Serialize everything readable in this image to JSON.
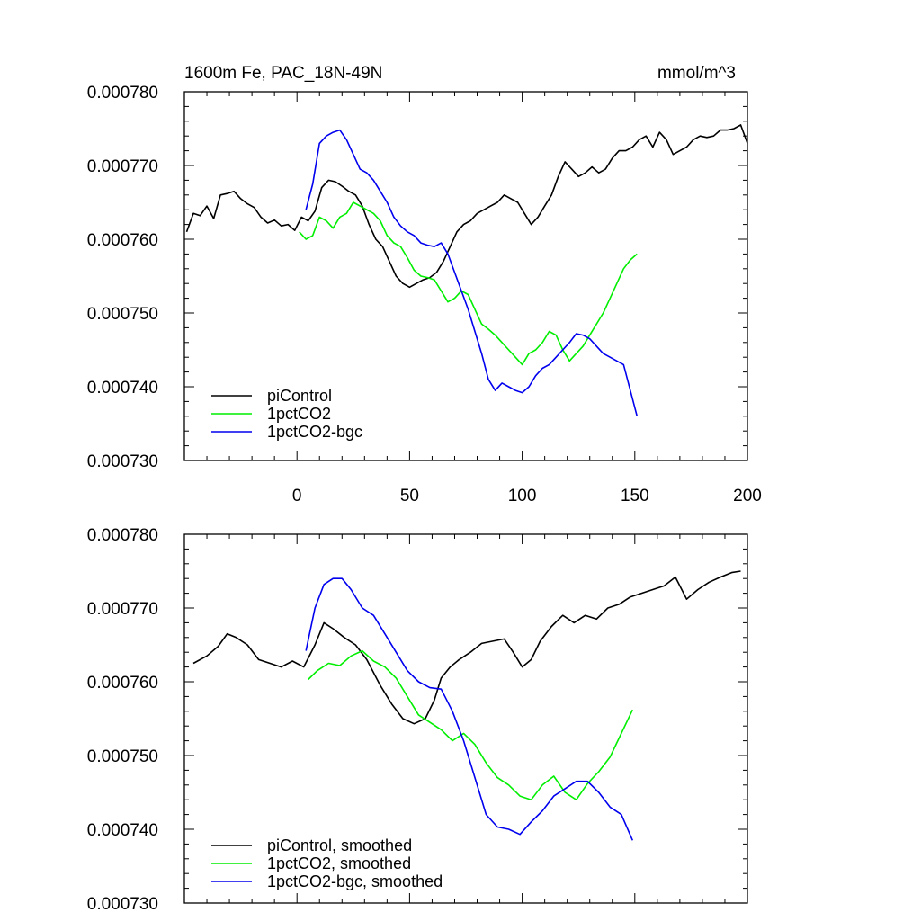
{
  "header": {
    "title": "1600m Fe, PAC_18N-49N",
    "units": "mmol/m^3"
  },
  "chart_data": [
    {
      "type": "line",
      "xlim": [
        -50,
        200
      ],
      "ylim": [
        0.00073,
        0.00078
      ],
      "yticks": [
        "0.000730",
        "0.000740",
        "0.000750",
        "0.000760",
        "0.000770",
        "0.000780"
      ],
      "xtick_values": [
        0,
        50,
        100,
        150,
        200
      ],
      "xtick_labels": [
        "0",
        "50",
        "100",
        "150",
        "200"
      ],
      "legend_position": "bottom-left",
      "series": [
        {
          "name": "piControl",
          "color": "#000000",
          "x": [
            -49,
            -46,
            -43,
            -40,
            -37,
            -34,
            -31,
            -28,
            -25,
            -22,
            -19,
            -16,
            -13,
            -10,
            -7,
            -4,
            -1,
            2,
            5,
            8,
            11,
            14,
            17,
            20,
            23,
            26,
            29,
            32,
            35,
            38,
            41,
            44,
            47,
            50,
            53,
            56,
            59,
            62,
            65,
            68,
            71,
            74,
            77,
            80,
            83,
            86,
            89,
            92,
            95,
            98,
            101,
            104,
            107,
            110,
            113,
            116,
            119,
            122,
            125,
            128,
            131,
            134,
            137,
            140,
            143,
            146,
            149,
            152,
            155,
            158,
            161,
            164,
            167,
            170,
            173,
            176,
            179,
            182,
            185,
            188,
            191,
            194,
            197,
            200
          ],
          "y": [
            0.000761,
            0.0007635,
            0.0007632,
            0.0007645,
            0.0007628,
            0.000766,
            0.0007662,
            0.0007665,
            0.0007655,
            0.0007648,
            0.0007643,
            0.000763,
            0.0007622,
            0.0007626,
            0.0007618,
            0.000762,
            0.0007612,
            0.000763,
            0.0007625,
            0.0007638,
            0.000767,
            0.000768,
            0.0007678,
            0.0007672,
            0.0007665,
            0.000766,
            0.0007645,
            0.000762,
            0.00076,
            0.000759,
            0.000757,
            0.000755,
            0.000754,
            0.0007535,
            0.000754,
            0.0007545,
            0.0007548,
            0.0007555,
            0.000757,
            0.000759,
            0.000761,
            0.000762,
            0.0007625,
            0.0007635,
            0.000764,
            0.0007645,
            0.000765,
            0.000766,
            0.0007655,
            0.000765,
            0.0007635,
            0.000762,
            0.000763,
            0.0007645,
            0.000766,
            0.0007685,
            0.0007705,
            0.0007695,
            0.0007685,
            0.000769,
            0.0007698,
            0.000769,
            0.0007695,
            0.000771,
            0.000772,
            0.000772,
            0.0007725,
            0.0007735,
            0.000774,
            0.0007725,
            0.0007745,
            0.0007735,
            0.0007715,
            0.000772,
            0.0007725,
            0.0007735,
            0.000774,
            0.0007738,
            0.000774,
            0.0007748,
            0.0007748,
            0.000775,
            0.0007755,
            0.000773
          ]
        },
        {
          "name": "1pctCO2",
          "color": "#00ee00",
          "x": [
            1,
            4,
            7,
            10,
            13,
            16,
            19,
            22,
            25,
            28,
            31,
            34,
            37,
            40,
            43,
            46,
            49,
            52,
            55,
            58,
            61,
            64,
            67,
            70,
            73,
            76,
            79,
            82,
            85,
            88,
            91,
            94,
            97,
            100,
            103,
            106,
            109,
            112,
            115,
            118,
            121,
            124,
            127,
            130,
            133,
            136,
            139,
            142,
            145,
            148,
            151
          ],
          "y": [
            0.000761,
            0.00076,
            0.0007605,
            0.000763,
            0.0007625,
            0.0007615,
            0.000763,
            0.0007635,
            0.000765,
            0.0007645,
            0.000764,
            0.0007635,
            0.0007625,
            0.0007605,
            0.0007595,
            0.000759,
            0.0007575,
            0.0007558,
            0.000755,
            0.0007548,
            0.0007545,
            0.000753,
            0.0007515,
            0.000752,
            0.000753,
            0.0007525,
            0.0007505,
            0.0007485,
            0.0007478,
            0.000747,
            0.000746,
            0.000745,
            0.000744,
            0.000743,
            0.0007445,
            0.000745,
            0.000746,
            0.0007475,
            0.000747,
            0.000745,
            0.0007435,
            0.0007445,
            0.0007455,
            0.000747,
            0.0007485,
            0.00075,
            0.000752,
            0.000754,
            0.000756,
            0.0007572,
            0.000758
          ]
        },
        {
          "name": "1pctCO2-bgc",
          "color": "#0000ee",
          "x": [
            4,
            7,
            10,
            13,
            16,
            19,
            22,
            25,
            28,
            31,
            34,
            37,
            40,
            43,
            46,
            49,
            52,
            55,
            58,
            61,
            64,
            67,
            70,
            73,
            76,
            79,
            82,
            85,
            88,
            91,
            94,
            97,
            100,
            103,
            106,
            109,
            112,
            115,
            118,
            121,
            124,
            127,
            130,
            133,
            136,
            139,
            142,
            145,
            148,
            151
          ],
          "y": [
            0.000764,
            0.0007675,
            0.000773,
            0.000774,
            0.0007745,
            0.0007748,
            0.0007735,
            0.0007715,
            0.0007695,
            0.000769,
            0.000768,
            0.0007665,
            0.000765,
            0.000763,
            0.0007618,
            0.000761,
            0.0007605,
            0.0007595,
            0.0007592,
            0.000759,
            0.0007595,
            0.000758,
            0.0007555,
            0.000753,
            0.0007505,
            0.0007475,
            0.0007445,
            0.000741,
            0.0007395,
            0.0007405,
            0.00074,
            0.0007395,
            0.0007392,
            0.00074,
            0.0007415,
            0.0007425,
            0.000743,
            0.000744,
            0.000745,
            0.000746,
            0.0007472,
            0.000747,
            0.0007465,
            0.0007455,
            0.0007445,
            0.000744,
            0.0007435,
            0.000743,
            0.0007395,
            0.000736
          ]
        }
      ]
    },
    {
      "type": "line",
      "xlim": [
        -50,
        200
      ],
      "ylim": [
        0.00073,
        0.00078
      ],
      "yticks": [
        "0.000730",
        "0.000740",
        "0.000750",
        "0.000760",
        "0.000770",
        "0.000780"
      ],
      "xtick_values": [
        0,
        50,
        100,
        150,
        200
      ],
      "xtick_labels": [],
      "legend_position": "bottom-left",
      "series": [
        {
          "name": "piControl, smoothed",
          "color": "#000000",
          "x": [
            -46,
            -40,
            -35,
            -31,
            -27,
            -22,
            -17,
            -12,
            -7,
            -2,
            3,
            8,
            12,
            16,
            21,
            26,
            31,
            37,
            42,
            47,
            52,
            57,
            61,
            64,
            68,
            72,
            77,
            82,
            87,
            92,
            96,
            100,
            104,
            108,
            113,
            118,
            123,
            128,
            133,
            138,
            143,
            148,
            153,
            158,
            163,
            168,
            173,
            178,
            183,
            188,
            193,
            197
          ],
          "y": [
            0.0007625,
            0.0007635,
            0.0007648,
            0.0007665,
            0.000766,
            0.000765,
            0.000763,
            0.0007625,
            0.000762,
            0.0007628,
            0.000762,
            0.000765,
            0.000768,
            0.0007672,
            0.000766,
            0.000765,
            0.000763,
            0.0007595,
            0.000757,
            0.000755,
            0.0007543,
            0.000755,
            0.0007575,
            0.0007605,
            0.000762,
            0.000763,
            0.000764,
            0.0007652,
            0.0007655,
            0.0007658,
            0.000764,
            0.000762,
            0.000763,
            0.0007655,
            0.0007675,
            0.000769,
            0.000768,
            0.000769,
            0.0007685,
            0.00077,
            0.0007705,
            0.0007715,
            0.000772,
            0.0007725,
            0.000773,
            0.0007742,
            0.0007712,
            0.0007725,
            0.0007735,
            0.0007742,
            0.0007748,
            0.000775
          ]
        },
        {
          "name": "1pctCO2, smoothed",
          "color": "#00ee00",
          "x": [
            5,
            9,
            14,
            19,
            24,
            29,
            34,
            39,
            44,
            49,
            54,
            59,
            64,
            69,
            74,
            79,
            84,
            89,
            94,
            99,
            104,
            109,
            114,
            119,
            124,
            129,
            134,
            139,
            144,
            149
          ],
          "y": [
            0.0007603,
            0.0007615,
            0.0007625,
            0.0007622,
            0.0007635,
            0.0007642,
            0.0007628,
            0.000762,
            0.0007605,
            0.000758,
            0.0007555,
            0.0007545,
            0.0007535,
            0.000752,
            0.000753,
            0.0007515,
            0.000749,
            0.000747,
            0.000746,
            0.0007445,
            0.000744,
            0.000746,
            0.0007472,
            0.000745,
            0.000744,
            0.0007462,
            0.0007478,
            0.0007498,
            0.000753,
            0.0007562
          ]
        },
        {
          "name": "1pctCO2-bgc, smoothed",
          "color": "#0000ee",
          "x": [
            4,
            8,
            12,
            16,
            20,
            24,
            29,
            34,
            39,
            44,
            49,
            54,
            59,
            64,
            69,
            74,
            79,
            84,
            89,
            94,
            99,
            104,
            109,
            114,
            119,
            124,
            129,
            134,
            139,
            144,
            149
          ],
          "y": [
            0.0007642,
            0.00077,
            0.0007732,
            0.000774,
            0.000774,
            0.0007725,
            0.00077,
            0.000769,
            0.0007665,
            0.000764,
            0.0007615,
            0.00076,
            0.0007592,
            0.000759,
            0.000756,
            0.000752,
            0.000747,
            0.000742,
            0.0007403,
            0.00074,
            0.0007393,
            0.000741,
            0.0007425,
            0.0007445,
            0.0007455,
            0.0007465,
            0.0007465,
            0.000745,
            0.000743,
            0.000742,
            0.0007385
          ]
        }
      ]
    }
  ]
}
